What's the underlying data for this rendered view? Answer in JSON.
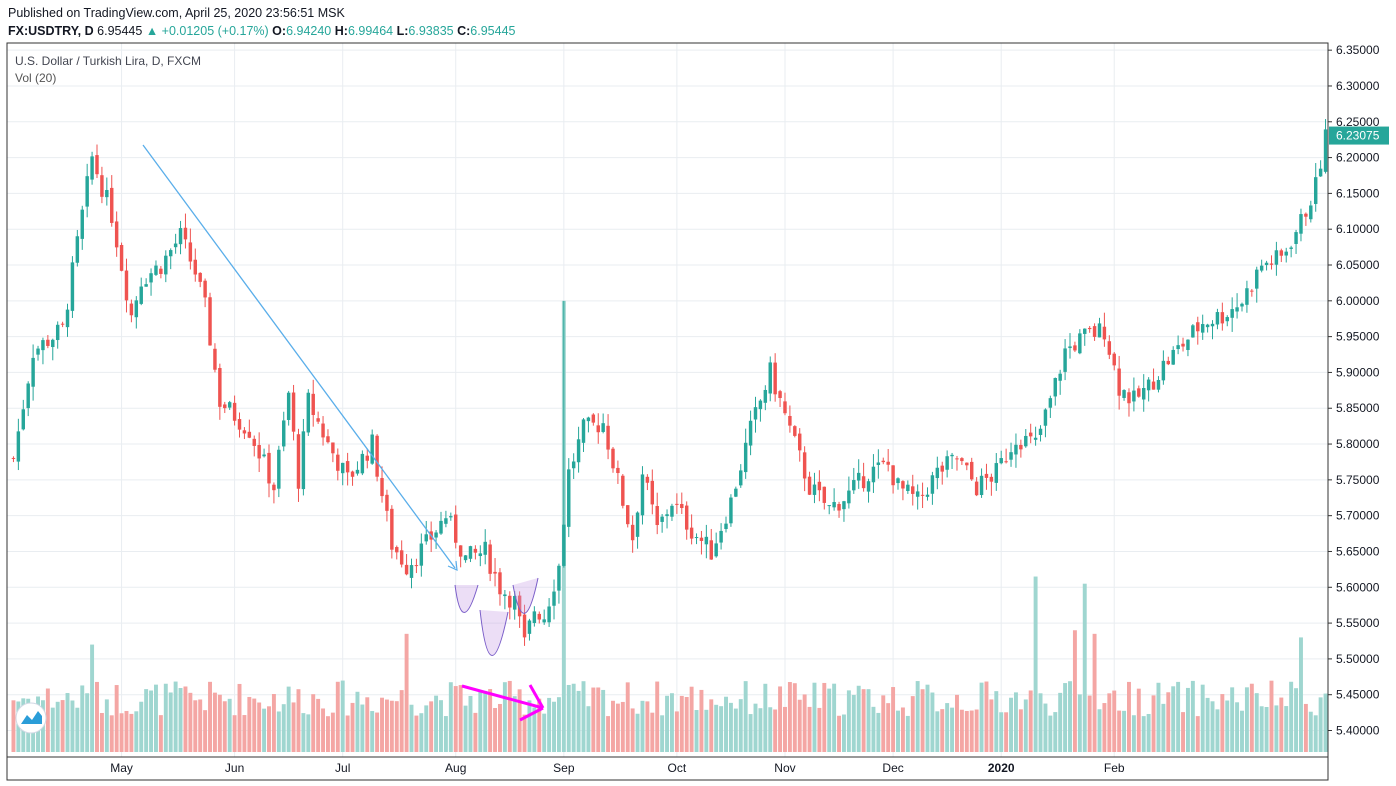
{
  "header": {
    "published": "Published on TradingView.com, April 25, 2020 23:56:51 MSK",
    "symbol": "FX:USDTRY, D",
    "last": "6.95445",
    "change": "▲ +0.01205 (+0.17%)",
    "o_label": "O:",
    "o_value": "6.94240",
    "h_label": "H:",
    "h_value": "6.99464",
    "l_label": "L:",
    "l_value": "6.93835",
    "c_label": "C:",
    "c_value": "6.95445"
  },
  "legend": {
    "title": "U.S. Dollar / Turkish Lira, D, FXCM",
    "volume": "Vol (20)"
  },
  "chart_data": {
    "type": "candlestick",
    "ylim": [
      5.37,
      6.36
    ],
    "y_ticks": [
      "6.35000",
      "6.30000",
      "6.25000",
      "6.20000",
      "6.15000",
      "6.10000",
      "6.05000",
      "6.00000",
      "5.95000",
      "5.90000",
      "5.85000",
      "5.80000",
      "5.75000",
      "5.70000",
      "5.65000",
      "5.60000",
      "5.55000",
      "5.50000",
      "5.45000",
      "5.40000"
    ],
    "x_ticks": [
      "May",
      "Jun",
      "Jul",
      "Aug",
      "Sep",
      "Oct",
      "Nov",
      "Dec",
      "2020",
      "Feb"
    ],
    "last_price_label": "6.23075",
    "colors": {
      "up": "#26a69a",
      "down": "#ef5350",
      "vol_up": "#9fd6d0",
      "vol_down": "#f4a6a4",
      "trend": "#5aaeea",
      "arrow": "#ff00ff",
      "ellipse": "#7b5fc9"
    },
    "path": [
      [
        0,
        5.78
      ],
      [
        4,
        5.93
      ],
      [
        10,
        5.96
      ],
      [
        16,
        6.2
      ],
      [
        20,
        6.12
      ],
      [
        24,
        5.98
      ],
      [
        26,
        6.03
      ],
      [
        30,
        6.05
      ],
      [
        34,
        6.09
      ],
      [
        37,
        6.04
      ],
      [
        39,
        5.99
      ],
      [
        42,
        5.86
      ],
      [
        48,
        5.82
      ],
      [
        53,
        5.74
      ],
      [
        56,
        5.87
      ],
      [
        58,
        5.75
      ],
      [
        60,
        5.86
      ],
      [
        64,
        5.8
      ],
      [
        68,
        5.75
      ],
      [
        73,
        5.8
      ],
      [
        77,
        5.66
      ],
      [
        80,
        5.63
      ],
      [
        84,
        5.66
      ],
      [
        88,
        5.7
      ],
      [
        92,
        5.64
      ],
      [
        96,
        5.65
      ],
      [
        99,
        5.6
      ],
      [
        102,
        5.58
      ],
      [
        104,
        5.52
      ],
      [
        106,
        5.57
      ],
      [
        108,
        5.56
      ],
      [
        111,
        5.63
      ],
      [
        113,
        5.76
      ],
      [
        116,
        5.82
      ],
      [
        120,
        5.83
      ],
      [
        124,
        5.72
      ],
      [
        126,
        5.67
      ],
      [
        128,
        5.76
      ],
      [
        131,
        5.68
      ],
      [
        134,
        5.72
      ],
      [
        138,
        5.68
      ],
      [
        142,
        5.65
      ],
      [
        146,
        5.72
      ],
      [
        150,
        5.82
      ],
      [
        154,
        5.9
      ],
      [
        158,
        5.82
      ],
      [
        162,
        5.74
      ],
      [
        166,
        5.71
      ],
      [
        170,
        5.73
      ],
      [
        174,
        5.76
      ],
      [
        178,
        5.77
      ],
      [
        180,
        5.74
      ],
      [
        184,
        5.72
      ],
      [
        188,
        5.76
      ],
      [
        192,
        5.78
      ],
      [
        196,
        5.74
      ],
      [
        200,
        5.76
      ],
      [
        204,
        5.81
      ],
      [
        208,
        5.8
      ],
      [
        211,
        5.86
      ],
      [
        214,
        5.93
      ],
      [
        218,
        5.95
      ],
      [
        222,
        5.96
      ],
      [
        225,
        5.88
      ],
      [
        228,
        5.86
      ],
      [
        231,
        5.88
      ],
      [
        234,
        5.91
      ],
      [
        238,
        5.94
      ],
      [
        242,
        5.97
      ],
      [
        246,
        5.98
      ],
      [
        250,
        6.0
      ],
      [
        254,
        6.05
      ],
      [
        258,
        6.06
      ],
      [
        262,
        6.11
      ],
      [
        265,
        6.16
      ],
      [
        267,
        6.23
      ]
    ],
    "volume_spikes": [
      [
        16,
        5.52
      ],
      [
        80,
        5.535
      ],
      [
        112,
        6.0
      ],
      [
        208,
        5.615
      ],
      [
        218,
        5.605
      ],
      [
        216,
        5.54
      ],
      [
        220,
        5.535
      ],
      [
        262,
        5.53
      ]
    ]
  }
}
